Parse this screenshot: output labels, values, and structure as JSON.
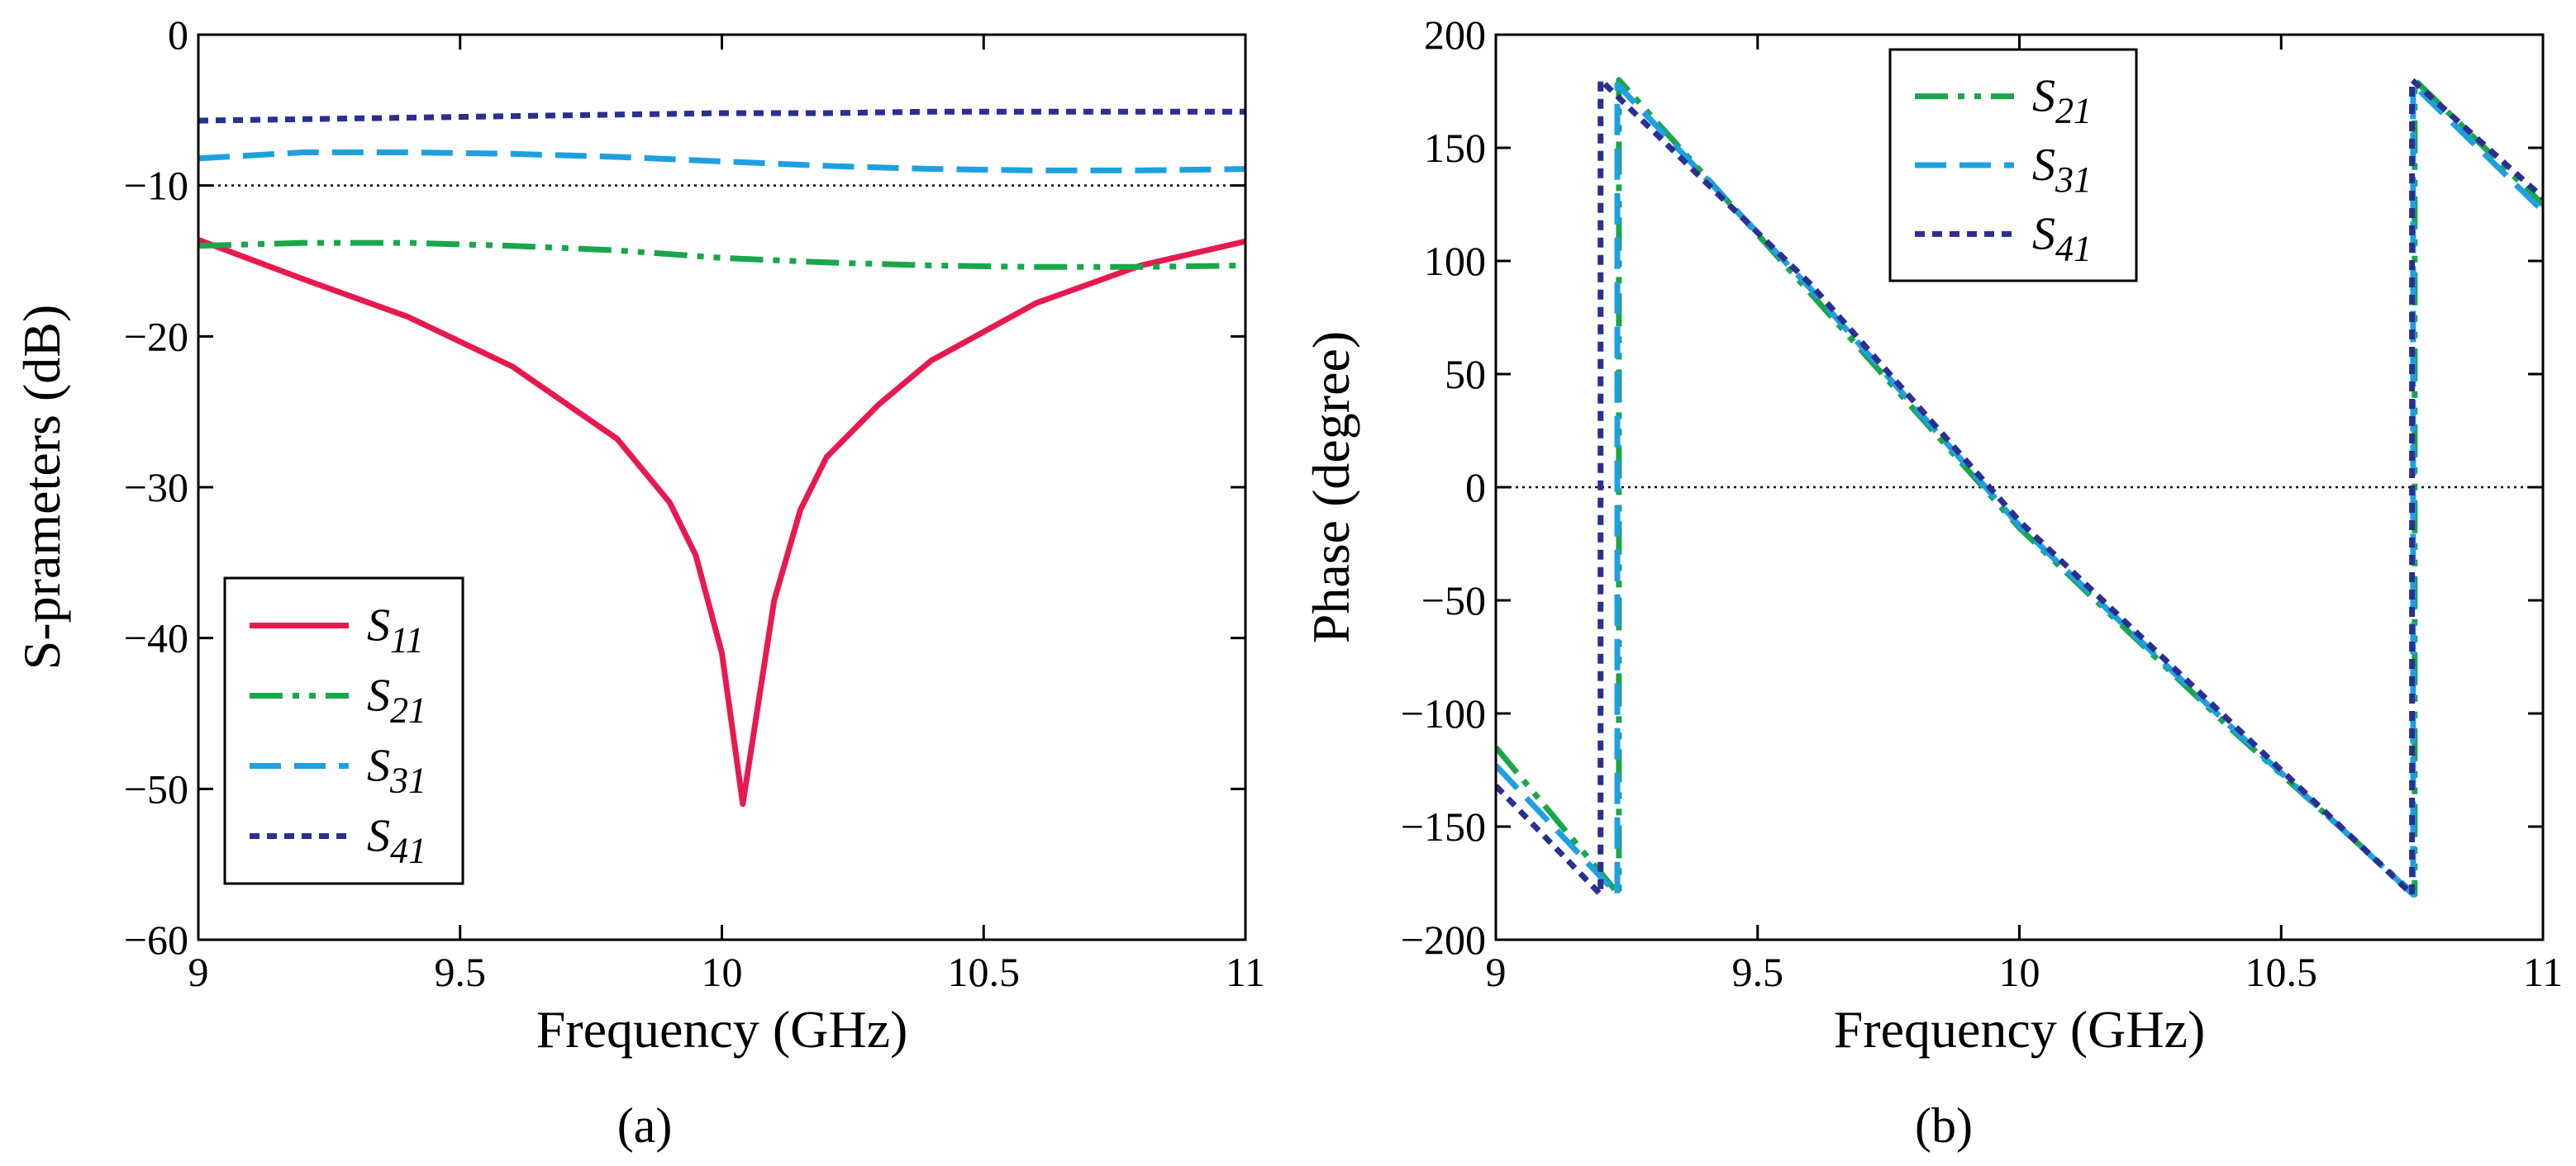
{
  "chart_data": [
    {
      "type": "line",
      "panel": "a",
      "caption": "(a)",
      "xlabel": "Frequency (GHz)",
      "ylabel": "S-prameters (dB)",
      "xlim": [
        9,
        11
      ],
      "ylim": [
        -60,
        0
      ],
      "xticks": [
        9,
        9.5,
        10,
        10.5,
        11
      ],
      "xtick_labels": [
        "9",
        "9.5",
        "10",
        "10.5",
        "11"
      ],
      "yticks": [
        0,
        -10,
        -20,
        -30,
        -40,
        -50,
        -60
      ],
      "ytick_labels": [
        "0",
        "−10",
        "−20",
        "−30",
        "−40",
        "−50",
        "−60"
      ],
      "reference_line": {
        "y": -10
      },
      "legend_position": "lower-left",
      "series": [
        {
          "name": "S11",
          "label_main": "S",
          "label_sub": "11",
          "color": "#e8194f",
          "dash": "",
          "x": [
            9.0,
            9.2,
            9.4,
            9.6,
            9.8,
            9.9,
            9.95,
            10.0,
            10.02,
            10.04,
            10.06,
            10.1,
            10.15,
            10.2,
            10.3,
            10.4,
            10.6,
            10.8,
            11.0
          ],
          "y": [
            -13.6,
            -16.2,
            -18.7,
            -22.0,
            -26.8,
            -31.0,
            -34.5,
            -41.0,
            -46.0,
            -51.0,
            -46.5,
            -37.5,
            -31.5,
            -28.0,
            -24.5,
            -21.6,
            -17.8,
            -15.3,
            -13.7
          ]
        },
        {
          "name": "S21",
          "label_main": "S",
          "label_sub": "21",
          "color": "#1aa64a",
          "dash": "40,12,8,12,8,12",
          "x": [
            9.0,
            9.2,
            9.4,
            9.6,
            9.8,
            10.0,
            10.2,
            10.4,
            10.6,
            10.8,
            11.0
          ],
          "y": [
            -14.0,
            -13.8,
            -13.8,
            -14.0,
            -14.3,
            -14.8,
            -15.1,
            -15.3,
            -15.4,
            -15.4,
            -15.3
          ]
        },
        {
          "name": "S31",
          "label_main": "S",
          "label_sub": "31",
          "color": "#1ea0e0",
          "dash": "38,16",
          "x": [
            9.0,
            9.2,
            9.4,
            9.6,
            9.8,
            10.0,
            10.2,
            10.4,
            10.6,
            10.8,
            11.0
          ],
          "y": [
            -8.2,
            -7.8,
            -7.8,
            -7.9,
            -8.1,
            -8.4,
            -8.7,
            -8.9,
            -9.0,
            -9.0,
            -8.9
          ]
        },
        {
          "name": "S41",
          "label_main": "S",
          "label_sub": "41",
          "color": "#2b2f8f",
          "dash": "12,9",
          "x": [
            9.0,
            9.2,
            9.4,
            9.6,
            9.8,
            10.0,
            10.2,
            10.4,
            10.6,
            10.8,
            11.0
          ],
          "y": [
            -5.7,
            -5.6,
            -5.5,
            -5.4,
            -5.3,
            -5.2,
            -5.2,
            -5.1,
            -5.1,
            -5.1,
            -5.1
          ]
        }
      ]
    },
    {
      "type": "line",
      "panel": "b",
      "caption": "(b)",
      "xlabel": "Frequency (GHz)",
      "ylabel": "Phase (degree)",
      "xlim": [
        9,
        11
      ],
      "ylim": [
        -200,
        200
      ],
      "xticks": [
        9,
        9.5,
        10,
        10.5,
        11
      ],
      "xtick_labels": [
        "9",
        "9.5",
        "10",
        "10.5",
        "11"
      ],
      "yticks": [
        200,
        150,
        100,
        50,
        0,
        -50,
        -100,
        -150,
        -200
      ],
      "ytick_labels": [
        "200",
        "150",
        "100",
        "50",
        "0",
        "−50",
        "−100",
        "−150",
        "−200"
      ],
      "reference_line": {
        "y": 0
      },
      "legend_position": "top-center",
      "series": [
        {
          "name": "S21",
          "label_main": "S",
          "label_sub": "21",
          "color": "#1aa64a",
          "dash": "40,12,8,12,8,12",
          "x": [
            9.0,
            9.235,
            9.235,
            9.6,
            10.0,
            10.4,
            10.755,
            10.755,
            11.0
          ],
          "y": [
            -115,
            -180,
            180,
            86,
            -18,
            -106,
            -180,
            180,
            125
          ]
        },
        {
          "name": "S31",
          "label_main": "S",
          "label_sub": "31",
          "color": "#1ea0e0",
          "dash": "38,16",
          "x": [
            9.0,
            9.232,
            9.232,
            9.6,
            10.0,
            10.4,
            10.752,
            10.752,
            11.0
          ],
          "y": [
            -123,
            -180,
            178,
            88,
            -17,
            -105,
            -180,
            178,
            122
          ]
        },
        {
          "name": "S41",
          "label_main": "S",
          "label_sub": "41",
          "color": "#2b2f8f",
          "dash": "12,9",
          "x": [
            9.0,
            9.2,
            9.2,
            9.6,
            10.0,
            10.4,
            10.75,
            10.75,
            11.0
          ],
          "y": [
            -132,
            -180,
            180,
            90,
            -15,
            -103,
            -180,
            180,
            128
          ]
        }
      ]
    }
  ]
}
